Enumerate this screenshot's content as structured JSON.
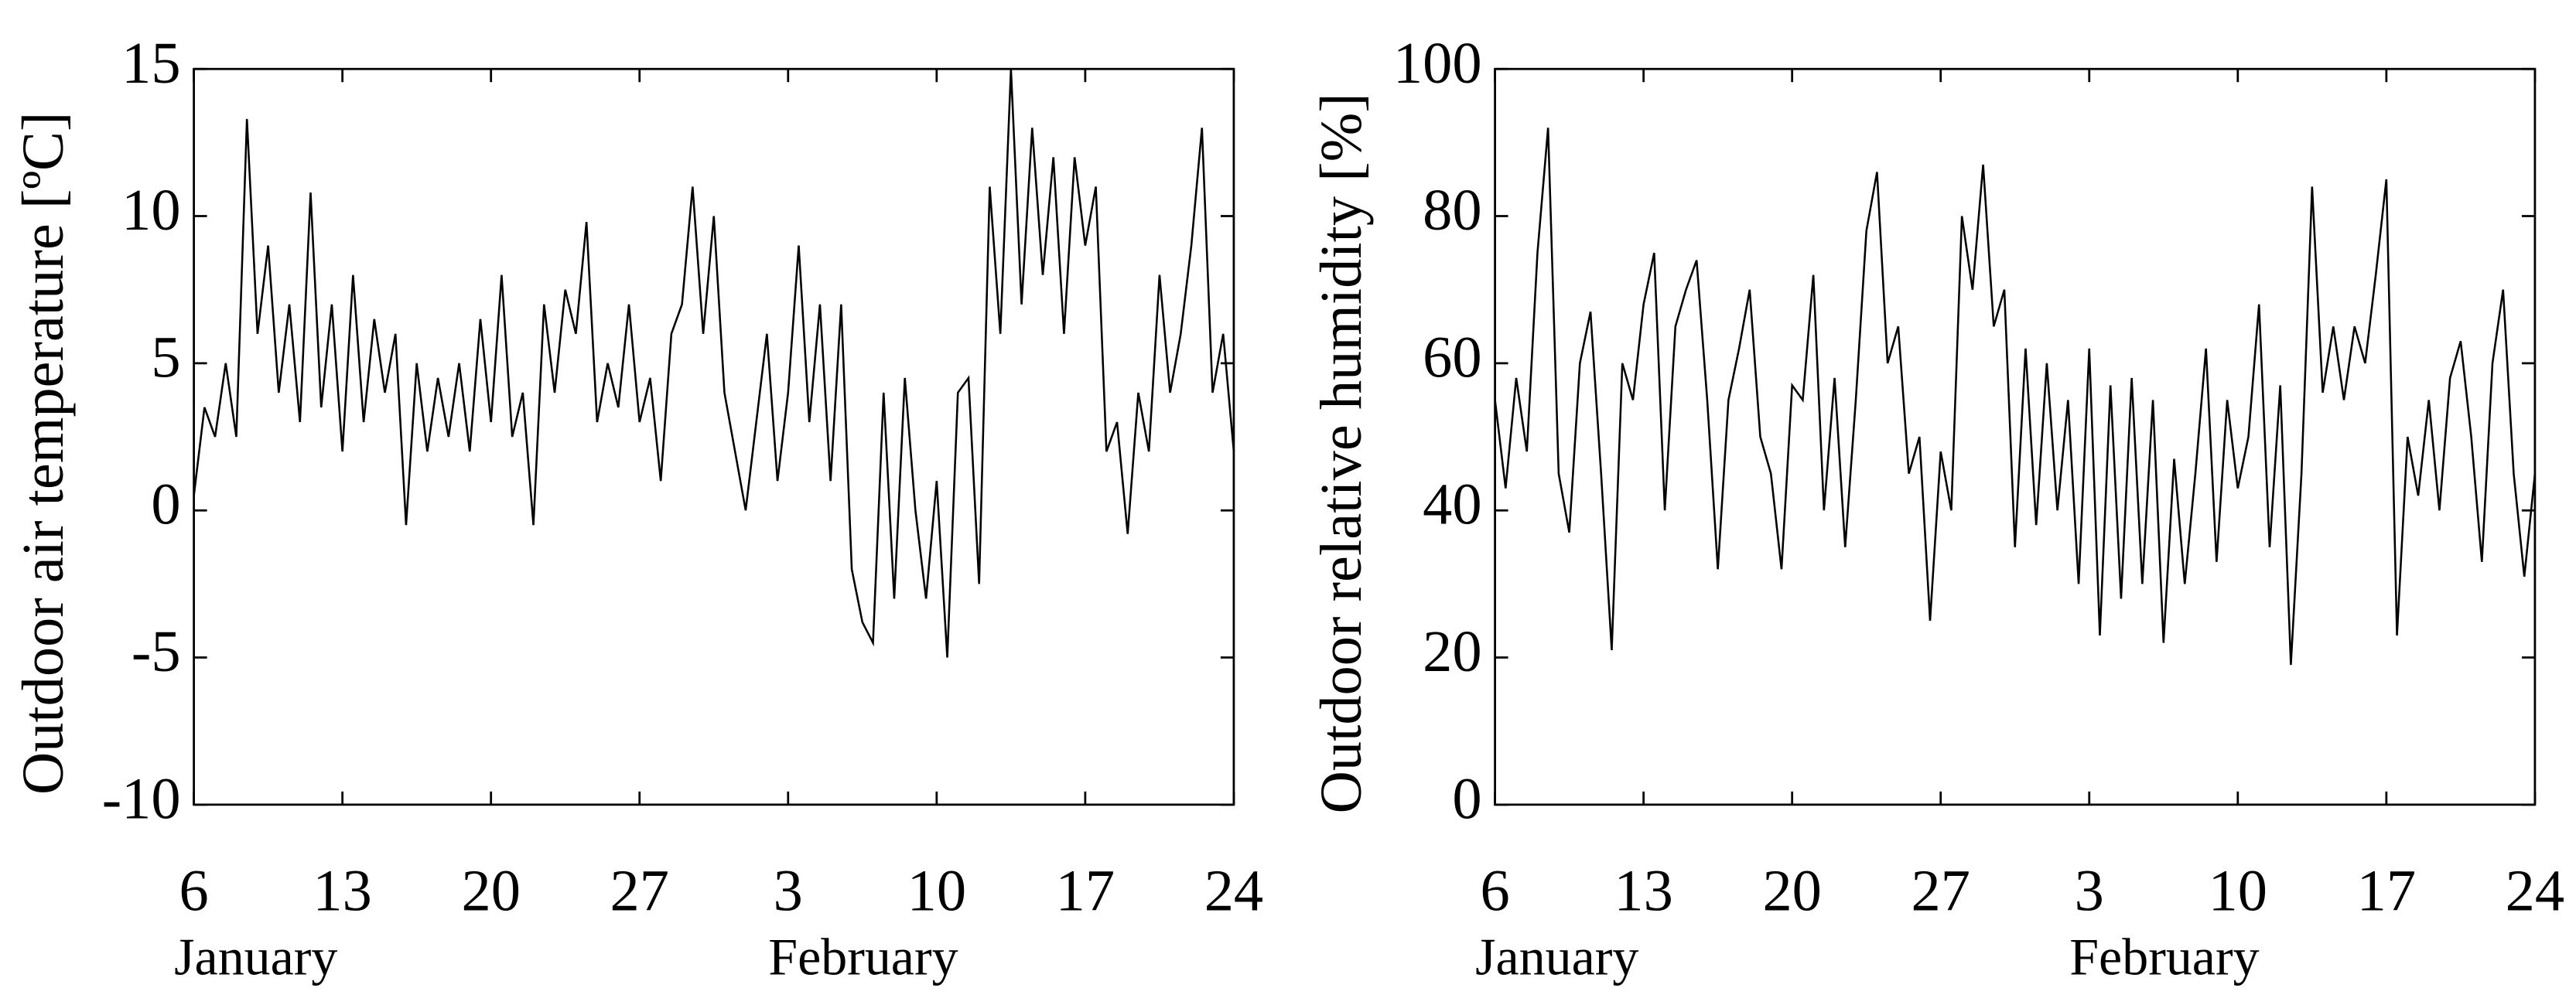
{
  "chart_data": [
    {
      "type": "line",
      "ylabel": "Outdoor air temperature [ºC]",
      "x": [
        6,
        6.5,
        7,
        7.5,
        8,
        8.5,
        9,
        9.5,
        10,
        10.5,
        11,
        11.5,
        12,
        12.5,
        13,
        13.5,
        14,
        14.5,
        15,
        15.5,
        16,
        16.5,
        17,
        17.5,
        18,
        18.5,
        19,
        19.5,
        20,
        20.5,
        21,
        21.5,
        22,
        22.5,
        23,
        23.5,
        24,
        24.5,
        25,
        25.5,
        26,
        26.5,
        27,
        27.5,
        28,
        28.5,
        29,
        29.5,
        30,
        30.5,
        31,
        31.5,
        32,
        32.5,
        33,
        33.5,
        34,
        34.5,
        35,
        35.5,
        36,
        36.5,
        37,
        37.5,
        38,
        38.5,
        39,
        39.5,
        40,
        40.5,
        41,
        41.5,
        42,
        42.5,
        43,
        43.5,
        44,
        44.5,
        45,
        45.5,
        46,
        46.5,
        47,
        47.5,
        48,
        48.5,
        49,
        49.5,
        50,
        50.5,
        51,
        51.5,
        52,
        52.5,
        53,
        53.5,
        54,
        54.5,
        55
      ],
      "values": [
        0.5,
        3.5,
        2.5,
        5,
        2.5,
        13.3,
        6,
        9,
        4,
        7,
        3,
        10.8,
        3.5,
        7,
        2,
        8,
        3,
        6.5,
        4,
        6,
        -0.5,
        5,
        2,
        4.5,
        2.5,
        5,
        2,
        6.5,
        3,
        8,
        2.5,
        4,
        -0.5,
        7,
        4,
        7.5,
        6,
        9.8,
        3,
        5,
        3.5,
        7,
        3,
        4.5,
        1,
        6,
        7,
        11,
        6,
        10,
        4,
        2,
        0,
        3,
        6,
        1,
        4,
        9,
        3,
        7,
        1,
        7,
        -2,
        -3.8,
        -4.5,
        4,
        -3,
        4.5,
        0,
        -3,
        1,
        -5,
        4,
        4.5,
        -2.5,
        11,
        6,
        15,
        7,
        13,
        8,
        12,
        6,
        12,
        9,
        11,
        2,
        3,
        -0.8,
        4,
        2,
        8,
        4,
        6,
        9,
        13,
        4,
        6,
        2
      ],
      "color": "#000000",
      "xlim": [
        6,
        55
      ],
      "xticks": [
        6,
        13,
        20,
        27,
        {
          "value": 34,
          "label": "3"
        },
        {
          "value": 41,
          "label": "10"
        },
        {
          "value": 48,
          "label": "17"
        },
        {
          "value": 55,
          "label": "24"
        }
      ],
      "month_labels": [
        "January",
        "February"
      ],
      "ylim": [
        -10,
        15
      ],
      "yticks": [
        -10,
        -5,
        0,
        5,
        10,
        15
      ]
    },
    {
      "type": "line",
      "ylabel": "Outdoor relative humidity [%]",
      "x": [
        6,
        6.5,
        7,
        7.5,
        8,
        8.5,
        9,
        9.5,
        10,
        10.5,
        11,
        11.5,
        12,
        12.5,
        13,
        13.5,
        14,
        14.5,
        15,
        15.5,
        16,
        16.5,
        17,
        17.5,
        18,
        18.5,
        19,
        19.5,
        20,
        20.5,
        21,
        21.5,
        22,
        22.5,
        23,
        23.5,
        24,
        24.5,
        25,
        25.5,
        26,
        26.5,
        27,
        27.5,
        28,
        28.5,
        29,
        29.5,
        30,
        30.5,
        31,
        31.5,
        32,
        32.5,
        33,
        33.5,
        34,
        34.5,
        35,
        35.5,
        36,
        36.5,
        37,
        37.5,
        38,
        38.5,
        39,
        39.5,
        40,
        40.5,
        41,
        41.5,
        42,
        42.5,
        43,
        43.5,
        44,
        44.5,
        45,
        45.5,
        46,
        46.5,
        47,
        47.5,
        48,
        48.5,
        49,
        49.5,
        50,
        50.5,
        51,
        51.5,
        52,
        52.5,
        53,
        53.5,
        54,
        54.5,
        55
      ],
      "values": [
        55,
        43,
        58,
        48,
        75,
        92,
        45,
        37,
        60,
        67,
        45,
        21,
        60,
        55,
        68,
        75,
        40,
        65,
        70,
        74,
        55,
        32,
        55,
        62,
        70,
        50,
        45,
        32,
        57,
        55,
        72,
        40,
        58,
        35,
        55,
        78,
        86,
        60,
        65,
        45,
        50,
        25,
        48,
        40,
        80,
        70,
        87,
        65,
        70,
        35,
        62,
        38,
        60,
        40,
        55,
        30,
        62,
        23,
        57,
        28,
        58,
        30,
        55,
        22,
        47,
        30,
        45,
        62,
        33,
        55,
        43,
        50,
        68,
        35,
        57,
        19,
        45,
        84,
        56,
        65,
        55,
        65,
        60,
        72,
        85,
        23,
        50,
        42,
        55,
        40,
        58,
        63,
        50,
        33,
        60,
        70,
        45,
        31,
        45
      ],
      "color": "#000000",
      "xlim": [
        6,
        55
      ],
      "xticks": [
        6,
        13,
        20,
        27,
        {
          "value": 34,
          "label": "3"
        },
        {
          "value": 41,
          "label": "10"
        },
        {
          "value": 48,
          "label": "17"
        },
        {
          "value": 55,
          "label": "24"
        }
      ],
      "month_labels": [
        "January",
        "February"
      ],
      "ylim": [
        0,
        100
      ],
      "yticks": [
        0,
        20,
        40,
        60,
        80,
        100
      ]
    }
  ]
}
